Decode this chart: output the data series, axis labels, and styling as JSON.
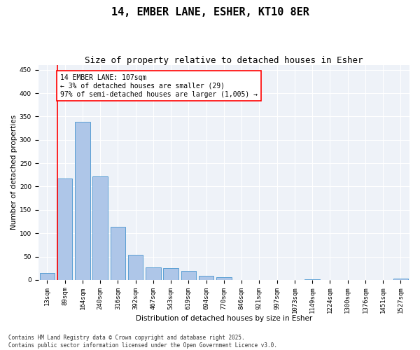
{
  "title": "14, EMBER LANE, ESHER, KT10 8ER",
  "subtitle": "Size of property relative to detached houses in Esher",
  "xlabel": "Distribution of detached houses by size in Esher",
  "ylabel": "Number of detached properties",
  "bar_labels": [
    "13sqm",
    "89sqm",
    "164sqm",
    "240sqm",
    "316sqm",
    "392sqm",
    "467sqm",
    "543sqm",
    "619sqm",
    "694sqm",
    "770sqm",
    "846sqm",
    "921sqm",
    "997sqm",
    "1073sqm",
    "1149sqm",
    "1224sqm",
    "1300sqm",
    "1376sqm",
    "1451sqm",
    "1527sqm"
  ],
  "bar_values": [
    15,
    217,
    339,
    222,
    113,
    54,
    27,
    26,
    20,
    9,
    6,
    0,
    0,
    0,
    0,
    2,
    0,
    0,
    0,
    0,
    3
  ],
  "bar_color": "#aec6e8",
  "bar_edgecolor": "#5a9fd4",
  "vline_color": "red",
  "annotation_text": "14 EMBER LANE: 107sqm\n← 3% of detached houses are smaller (29)\n97% of semi-detached houses are larger (1,005) →",
  "annotation_box_color": "white",
  "annotation_box_edgecolor": "red",
  "ylim": [
    0,
    460
  ],
  "yticks": [
    0,
    50,
    100,
    150,
    200,
    250,
    300,
    350,
    400,
    450
  ],
  "background_color": "#eef2f8",
  "footer_text": "Contains HM Land Registry data © Crown copyright and database right 2025.\nContains public sector information licensed under the Open Government Licence v3.0.",
  "title_fontsize": 11,
  "subtitle_fontsize": 9,
  "axis_label_fontsize": 7.5,
  "tick_fontsize": 6.5,
  "annotation_fontsize": 7,
  "footer_fontsize": 5.5
}
